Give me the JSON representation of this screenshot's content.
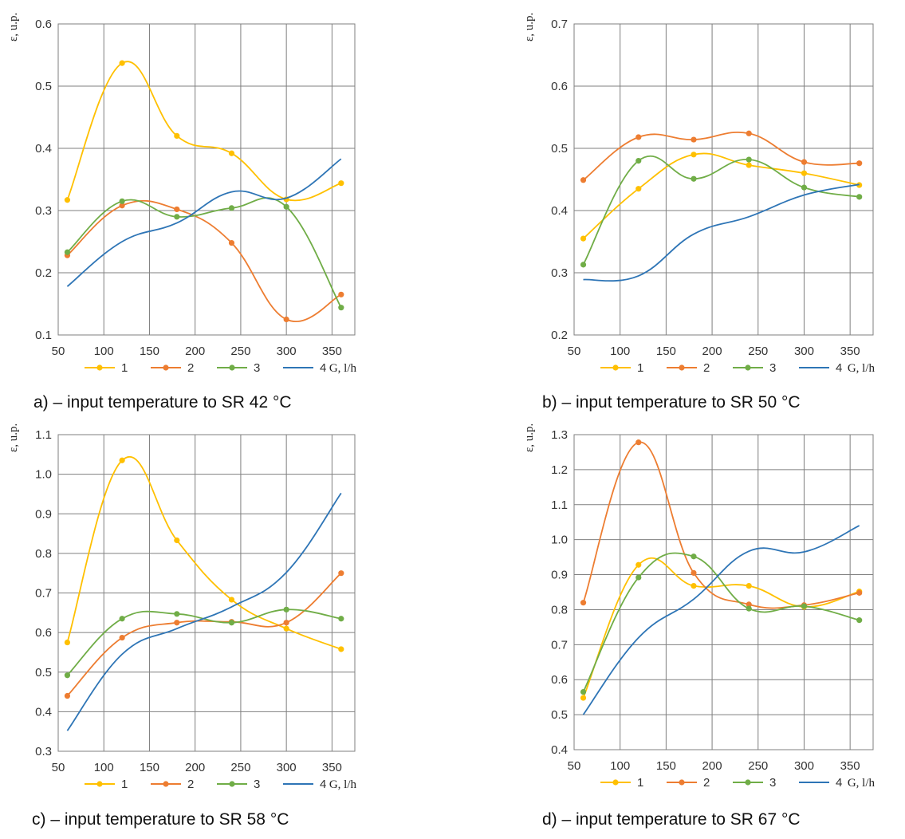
{
  "colors": {
    "s1": "#FFC000",
    "s2": "#ED7D31",
    "s3": "#70AD47",
    "s4": "#2E75B6",
    "grid": "#7f7f7f"
  },
  "chart_data": [
    {
      "type": "line",
      "caption": "a) – input temperature to SR 42 °C",
      "ylabel": "ε, u.p.",
      "xlabel": "G, l/h",
      "xlim": [
        50,
        375
      ],
      "ylim": [
        0.1,
        0.6
      ],
      "xticks": [
        50,
        100,
        150,
        200,
        250,
        300,
        350
      ],
      "yticks": [
        0.1,
        0.2,
        0.3,
        0.4,
        0.5,
        0.6
      ],
      "ytick_labels": [
        "0.1",
        "0.2",
        "0.3",
        "0.4",
        "0.5",
        "0.6"
      ],
      "x": [
        60,
        120,
        180,
        240,
        300,
        360
      ],
      "series": [
        {
          "name": "1",
          "values": [
            0.317,
            0.537,
            0.42,
            0.392,
            0.318,
            0.344
          ],
          "markers": true
        },
        {
          "name": "2",
          "values": [
            0.228,
            0.308,
            0.302,
            0.248,
            0.125,
            0.165
          ],
          "markers": true
        },
        {
          "name": "3",
          "values": [
            0.233,
            0.315,
            0.29,
            0.304,
            0.306,
            0.144
          ],
          "markers": true
        },
        {
          "name": "4",
          "values": [
            0.178,
            0.25,
            0.28,
            0.33,
            0.32,
            0.383
          ],
          "markers": false
        }
      ]
    },
    {
      "type": "line",
      "caption": "b) – input temperature to SR 50 °C",
      "ylabel": "ε, u.p.",
      "xlabel": "G, l/h",
      "xlim": [
        50,
        375
      ],
      "ylim": [
        0.2,
        0.7
      ],
      "xticks": [
        50,
        100,
        150,
        200,
        250,
        300,
        350
      ],
      "yticks": [
        0.2,
        0.3,
        0.4,
        0.5,
        0.6,
        0.7
      ],
      "ytick_labels": [
        "0.2",
        "0.3",
        "0.4",
        "0.5",
        "0.6",
        "0.7"
      ],
      "x": [
        60,
        120,
        180,
        240,
        300,
        360
      ],
      "series": [
        {
          "name": "1",
          "values": [
            0.355,
            0.435,
            0.49,
            0.473,
            0.46,
            0.441
          ],
          "markers": true
        },
        {
          "name": "2",
          "values": [
            0.449,
            0.518,
            0.514,
            0.524,
            0.478,
            0.476
          ],
          "markers": true
        },
        {
          "name": "3",
          "values": [
            0.313,
            0.48,
            0.451,
            0.482,
            0.437,
            0.422
          ],
          "markers": true
        },
        {
          "name": "4",
          "values": [
            0.289,
            0.295,
            0.362,
            0.39,
            0.425,
            0.442
          ],
          "markers": false
        }
      ]
    },
    {
      "type": "line",
      "caption": "c) – input temperature to SR 58 °C",
      "ylabel": "ε, u.p.",
      "xlabel": "G, l/h",
      "xlim": [
        50,
        375
      ],
      "ylim": [
        0.3,
        1.1
      ],
      "xticks": [
        50,
        100,
        150,
        200,
        250,
        300,
        350
      ],
      "yticks": [
        0.3,
        0.4,
        0.5,
        0.6,
        0.7,
        0.8,
        0.9,
        1.0,
        1.1
      ],
      "ytick_labels": [
        "0.3",
        "0.4",
        "0.5",
        "0.6",
        "0.7",
        "0.8",
        "0.9",
        "1.0",
        "1.1"
      ],
      "x": [
        60,
        120,
        180,
        240,
        300,
        360
      ],
      "series": [
        {
          "name": "1",
          "values": [
            0.575,
            1.035,
            0.833,
            0.683,
            0.61,
            0.558
          ],
          "markers": true
        },
        {
          "name": "2",
          "values": [
            0.44,
            0.587,
            0.625,
            0.627,
            0.625,
            0.75
          ],
          "markers": true
        },
        {
          "name": "3",
          "values": [
            0.492,
            0.635,
            0.647,
            0.625,
            0.658,
            0.635
          ],
          "markers": true
        },
        {
          "name": "4",
          "values": [
            0.352,
            0.545,
            0.61,
            0.665,
            0.752,
            0.952
          ],
          "markers": false
        }
      ]
    },
    {
      "type": "line",
      "caption": "d) – input temperature to SR 67 °C",
      "ylabel": "ε, u.p.",
      "xlabel": "G, l/h",
      "xlim": [
        50,
        375
      ],
      "ylim": [
        0.4,
        1.3
      ],
      "xticks": [
        50,
        100,
        150,
        200,
        250,
        300,
        350
      ],
      "yticks": [
        0.4,
        0.5,
        0.6,
        0.7,
        0.8,
        0.9,
        1.0,
        1.1,
        1.2,
        1.3
      ],
      "ytick_labels": [
        "0.4",
        "0.5",
        "0.6",
        "0.7",
        "0.8",
        "0.9",
        "1.0",
        "1.1",
        "1.2",
        "1.3"
      ],
      "x": [
        60,
        120,
        180,
        240,
        300,
        360
      ],
      "series": [
        {
          "name": "1",
          "values": [
            0.548,
            0.928,
            0.868,
            0.868,
            0.808,
            0.852
          ],
          "markers": true
        },
        {
          "name": "2",
          "values": [
            0.82,
            1.278,
            0.905,
            0.815,
            0.813,
            0.848
          ],
          "markers": true
        },
        {
          "name": "3",
          "values": [
            0.565,
            0.892,
            0.952,
            0.803,
            0.81,
            0.77
          ],
          "markers": true
        },
        {
          "name": "4",
          "values": [
            0.5,
            0.72,
            0.83,
            0.967,
            0.965,
            1.04
          ],
          "markers": false
        }
      ]
    }
  ]
}
